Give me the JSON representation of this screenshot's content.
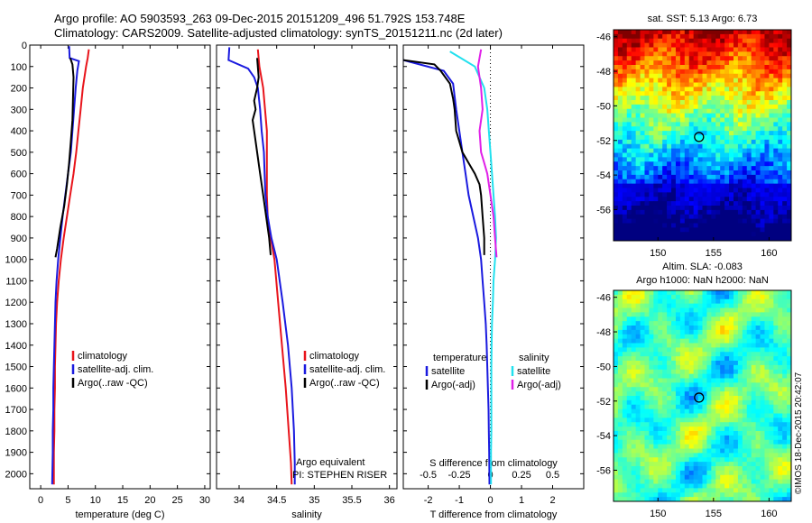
{
  "header": {
    "line1": "Argo profile: AO 5903593_263 09-Dec-2015 20151209_496 51.792S 153.748E",
    "line2": "Climatology: CARS2009. Satellite-adjusted climatology: synTS_20151211.nc (2d later)"
  },
  "credit": "©IMOS 18-Dec-2015 20:42:07",
  "colors": {
    "climatology": "#e8141b",
    "satellite": "#1a1adf",
    "argo": "#000000",
    "satellite_salinity": "#22e0ee",
    "argo_salinity": "#e020e8"
  },
  "chart_data": [
    {
      "type": "line",
      "xlabel": "temperature (deg C)",
      "ylabel": "",
      "xlim": [
        -2,
        31
      ],
      "ylim": [
        2070,
        0
      ],
      "xticks": [
        0,
        5,
        10,
        15,
        20,
        25,
        30
      ],
      "yticks": [
        0,
        100,
        200,
        300,
        400,
        500,
        600,
        700,
        800,
        900,
        1000,
        1100,
        1200,
        1300,
        1400,
        1500,
        1600,
        1700,
        1800,
        1900,
        2000
      ],
      "legend": [
        "climatology",
        "satellite-adj. clim.",
        "Argo(..raw -QC)"
      ],
      "series": [
        {
          "name": "climatology",
          "color": "#e8141b",
          "points": [
            [
              8.8,
              20
            ],
            [
              8.6,
              60
            ],
            [
              8.3,
              100
            ],
            [
              7.7,
              200
            ],
            [
              7.3,
              300
            ],
            [
              6.9,
              400
            ],
            [
              6.5,
              500
            ],
            [
              6.0,
              600
            ],
            [
              5.4,
              700
            ],
            [
              4.8,
              800
            ],
            [
              4.2,
              900
            ],
            [
              3.7,
              1000
            ],
            [
              3.3,
              1100
            ],
            [
              3.0,
              1200
            ],
            [
              2.8,
              1300
            ],
            [
              2.7,
              1400
            ],
            [
              2.6,
              1500
            ],
            [
              2.6,
              1600
            ],
            [
              2.5,
              1700
            ],
            [
              2.5,
              1800
            ],
            [
              2.4,
              1900
            ],
            [
              2.4,
              2050
            ]
          ]
        },
        {
          "name": "satellite-adj. clim.",
          "color": "#1a1adf",
          "points": [
            [
              5.2,
              5
            ],
            [
              5.3,
              60
            ],
            [
              7.0,
              75
            ],
            [
              6.7,
              120
            ],
            [
              6.4,
              200
            ],
            [
              6.1,
              300
            ],
            [
              5.8,
              400
            ],
            [
              5.5,
              500
            ],
            [
              5.0,
              600
            ],
            [
              4.5,
              700
            ],
            [
              4.0,
              800
            ],
            [
              3.6,
              900
            ],
            [
              3.2,
              1000
            ],
            [
              2.9,
              1100
            ],
            [
              2.7,
              1200
            ],
            [
              2.6,
              1300
            ],
            [
              2.5,
              1400
            ],
            [
              2.4,
              1500
            ],
            [
              2.3,
              1600
            ],
            [
              2.3,
              1700
            ],
            [
              2.2,
              1800
            ],
            [
              2.2,
              1900
            ],
            [
              2.1,
              2050
            ]
          ]
        },
        {
          "name": "Argo(..raw -QC)",
          "color": "#000000",
          "points": [
            [
              5.4,
              60
            ],
            [
              5.8,
              90
            ],
            [
              6.0,
              150
            ],
            [
              5.9,
              250
            ],
            [
              5.8,
              350
            ],
            [
              5.5,
              450
            ],
            [
              5.2,
              550
            ],
            [
              4.8,
              650
            ],
            [
              4.3,
              750
            ],
            [
              3.6,
              850
            ],
            [
              3.0,
              950
            ],
            [
              2.7,
              990
            ]
          ]
        }
      ]
    },
    {
      "type": "line",
      "xlabel": "salinity",
      "ylabel": "",
      "xlim": [
        33.7,
        36.1
      ],
      "ylim": [
        2070,
        0
      ],
      "xticks": [
        34,
        34.5,
        35,
        35.5,
        36
      ],
      "legend": [
        "climatology",
        "satellite-adj. clim.",
        "Argo(..raw -QC)"
      ],
      "annotations": [
        "Argo equivalent",
        "PI: STEPHEN RISER"
      ],
      "series": [
        {
          "name": "climatology",
          "color": "#e8141b",
          "points": [
            [
              34.25,
              20
            ],
            [
              34.27,
              100
            ],
            [
              34.32,
              200
            ],
            [
              34.37,
              400
            ],
            [
              34.37,
              600
            ],
            [
              34.37,
              700
            ],
            [
              34.38,
              800
            ],
            [
              34.42,
              900
            ],
            [
              34.47,
              1000
            ],
            [
              34.52,
              1200
            ],
            [
              34.57,
              1400
            ],
            [
              34.62,
              1600
            ],
            [
              34.66,
              1800
            ],
            [
              34.69,
              1950
            ],
            [
              34.7,
              2050
            ]
          ]
        },
        {
          "name": "satellite-adj. clim.",
          "color": "#1a1adf",
          "points": [
            [
              33.87,
              10
            ],
            [
              33.86,
              70
            ],
            [
              34.12,
              110
            ],
            [
              34.2,
              150
            ],
            [
              34.25,
              200
            ],
            [
              34.28,
              300
            ],
            [
              34.3,
              400
            ],
            [
              34.33,
              500
            ],
            [
              34.34,
              600
            ],
            [
              34.35,
              700
            ],
            [
              34.38,
              800
            ],
            [
              34.43,
              900
            ],
            [
              34.5,
              1000
            ],
            [
              34.58,
              1200
            ],
            [
              34.65,
              1400
            ],
            [
              34.7,
              1600
            ],
            [
              34.73,
              1800
            ],
            [
              34.74,
              1950
            ],
            [
              34.74,
              2050
            ]
          ]
        },
        {
          "name": "Argo(..raw -QC)",
          "color": "#000000",
          "points": [
            [
              34.24,
              60
            ],
            [
              34.26,
              150
            ],
            [
              34.24,
              200
            ],
            [
              34.2,
              260
            ],
            [
              34.22,
              300
            ],
            [
              34.18,
              350
            ],
            [
              34.2,
              400
            ],
            [
              34.24,
              500
            ],
            [
              34.28,
              600
            ],
            [
              34.32,
              700
            ],
            [
              34.36,
              800
            ],
            [
              34.4,
              900
            ],
            [
              34.42,
              980
            ]
          ]
        }
      ]
    },
    {
      "type": "line",
      "xlabel": "T difference from climatology",
      "xlabel2": "S difference from climatology",
      "xlim": [
        -2.8,
        3.0
      ],
      "ylim": [
        2070,
        0
      ],
      "xticks": [
        -2,
        -1,
        0,
        1,
        2
      ],
      "xticks_top": [
        "-0.5",
        "-0.25",
        "0",
        "0.25",
        "0.5"
      ],
      "legend_left_title": "temperature",
      "legend_right_title": "salinity",
      "legend": [
        "satellite",
        "Argo(-adj)",
        "satellite",
        "Argo(-adj)"
      ],
      "series": [
        {
          "name": "satellite",
          "color": "#1a1adf",
          "points": [
            [
              -2.8,
              70
            ],
            [
              -1.5,
              120
            ],
            [
              -1.2,
              180
            ],
            [
              -1.1,
              300
            ],
            [
              -1.0,
              400
            ],
            [
              -0.9,
              500
            ],
            [
              -0.8,
              600
            ],
            [
              -0.7,
              700
            ],
            [
              -0.55,
              800
            ],
            [
              -0.4,
              900
            ],
            [
              -0.3,
              1000
            ],
            [
              -0.25,
              1100
            ],
            [
              -0.2,
              1200
            ],
            [
              -0.15,
              1300
            ],
            [
              -0.12,
              1400
            ],
            [
              -0.1,
              1500
            ],
            [
              -0.08,
              1600
            ],
            [
              -0.06,
              1700
            ],
            [
              -0.05,
              1800
            ],
            [
              -0.04,
              1900
            ],
            [
              -0.03,
              2050
            ]
          ]
        },
        {
          "name": "Argo(-adj)",
          "color": "#000000",
          "points": [
            [
              -2.8,
              70
            ],
            [
              -1.8,
              90
            ],
            [
              -1.6,
              120
            ],
            [
              -1.3,
              180
            ],
            [
              -1.2,
              250
            ],
            [
              -1.15,
              300
            ],
            [
              -1.1,
              400
            ],
            [
              -1.0,
              450
            ],
            [
              -0.9,
              500
            ],
            [
              -0.7,
              550
            ],
            [
              -0.5,
              600
            ],
            [
              -0.35,
              650
            ],
            [
              -0.3,
              700
            ],
            [
              -0.25,
              800
            ],
            [
              -0.2,
              900
            ],
            [
              -0.2,
              980
            ]
          ]
        },
        {
          "name": "satellite (salinity)",
          "color": "#22e0ee",
          "points": [
            [
              -1.3,
              30
            ],
            [
              -0.5,
              100
            ],
            [
              -0.2,
              200
            ],
            [
              -0.1,
              300
            ],
            [
              -0.05,
              400
            ],
            [
              0.0,
              500
            ],
            [
              0.05,
              600
            ],
            [
              0.1,
              700
            ],
            [
              0.15,
              800
            ],
            [
              0.18,
              900
            ],
            [
              0.15,
              1000
            ],
            [
              0.1,
              1100
            ],
            [
              0.08,
              1200
            ],
            [
              0.05,
              1300
            ],
            [
              0.04,
              1400
            ],
            [
              0.03,
              1500
            ],
            [
              0.03,
              1600
            ],
            [
              0.03,
              1700
            ],
            [
              0.03,
              1800
            ],
            [
              0.02,
              1900
            ],
            [
              0.02,
              2050
            ]
          ]
        },
        {
          "name": "Argo(-adj) (salinity)",
          "color": "#e020e8",
          "points": [
            [
              -0.3,
              20
            ],
            [
              -0.4,
              100
            ],
            [
              -0.3,
              200
            ],
            [
              -0.25,
              300
            ],
            [
              -0.35,
              400
            ],
            [
              -0.3,
              500
            ],
            [
              -0.2,
              550
            ],
            [
              -0.1,
              600
            ],
            [
              0.0,
              700
            ],
            [
              0.1,
              800
            ],
            [
              0.15,
              900
            ],
            [
              0.2,
              990
            ]
          ]
        }
      ]
    },
    {
      "type": "heatmap",
      "title": "sat. SST: 5.13 Argo: 6.73",
      "xlim": [
        146,
        162
      ],
      "ylim": [
        -57.8,
        -45.6
      ],
      "xticks": [
        150,
        155,
        160
      ],
      "yticks": [
        -46,
        -48,
        -50,
        -52,
        -54,
        -56
      ],
      "marker": {
        "lon": 153.7,
        "lat": -51.8
      }
    },
    {
      "type": "heatmap",
      "title": "Altim. SLA: -0.083",
      "subtitle": "Argo h1000: NaN h2000: NaN",
      "xlim": [
        146,
        162
      ],
      "ylim": [
        -57.8,
        -45.6
      ],
      "xticks": [
        150,
        155,
        160
      ],
      "yticks": [
        -46,
        -48,
        -50,
        -52,
        -54,
        -56
      ],
      "marker": {
        "lon": 153.7,
        "lat": -51.8
      }
    }
  ]
}
